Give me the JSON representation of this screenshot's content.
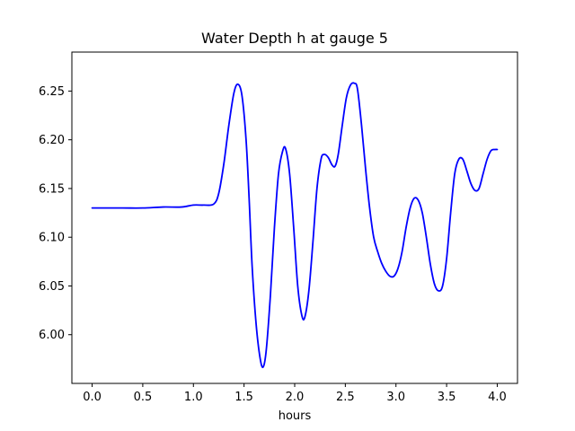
{
  "chart_data": {
    "type": "line",
    "title": "Water Depth h at gauge 5",
    "xlabel": "hours",
    "ylabel": "",
    "xlim": [
      -0.2,
      4.2
    ],
    "ylim": [
      5.95,
      6.29
    ],
    "x_ticks": [
      0.0,
      0.5,
      1.0,
      1.5,
      2.0,
      2.5,
      3.0,
      3.5,
      4.0
    ],
    "x_tick_labels": [
      "0.0",
      "0.5",
      "1.0",
      "1.5",
      "2.0",
      "2.5",
      "3.0",
      "3.5",
      "4.0"
    ],
    "y_ticks": [
      6.0,
      6.05,
      6.1,
      6.15,
      6.2,
      6.25
    ],
    "y_tick_labels": [
      "6.00",
      "6.05",
      "6.10",
      "6.15",
      "6.20",
      "6.25"
    ],
    "grid": false,
    "legend": "none",
    "series": [
      {
        "color": "#0000ff",
        "points": [
          [
            0.0,
            6.13
          ],
          [
            0.3,
            6.13
          ],
          [
            0.5,
            6.13
          ],
          [
            0.7,
            6.131
          ],
          [
            0.88,
            6.131
          ],
          [
            1.0,
            6.133
          ],
          [
            1.1,
            6.133
          ],
          [
            1.2,
            6.134
          ],
          [
            1.25,
            6.145
          ],
          [
            1.3,
            6.175
          ],
          [
            1.35,
            6.215
          ],
          [
            1.4,
            6.248
          ],
          [
            1.44,
            6.257
          ],
          [
            1.48,
            6.245
          ],
          [
            1.52,
            6.2
          ],
          [
            1.55,
            6.14
          ],
          [
            1.58,
            6.07
          ],
          [
            1.62,
            6.01
          ],
          [
            1.66,
            5.975
          ],
          [
            1.69,
            5.967
          ],
          [
            1.72,
            5.985
          ],
          [
            1.76,
            6.04
          ],
          [
            1.8,
            6.11
          ],
          [
            1.84,
            6.165
          ],
          [
            1.88,
            6.188
          ],
          [
            1.91,
            6.191
          ],
          [
            1.95,
            6.165
          ],
          [
            1.99,
            6.11
          ],
          [
            2.03,
            6.05
          ],
          [
            2.07,
            6.02
          ],
          [
            2.1,
            6.018
          ],
          [
            2.14,
            6.045
          ],
          [
            2.18,
            6.095
          ],
          [
            2.22,
            6.15
          ],
          [
            2.26,
            6.18
          ],
          [
            2.29,
            6.185
          ],
          [
            2.33,
            6.182
          ],
          [
            2.37,
            6.174
          ],
          [
            2.4,
            6.173
          ],
          [
            2.43,
            6.185
          ],
          [
            2.47,
            6.215
          ],
          [
            2.51,
            6.243
          ],
          [
            2.55,
            6.256
          ],
          [
            2.59,
            6.258
          ],
          [
            2.62,
            6.252
          ],
          [
            2.66,
            6.215
          ],
          [
            2.7,
            6.17
          ],
          [
            2.74,
            6.13
          ],
          [
            2.78,
            6.1
          ],
          [
            2.82,
            6.085
          ],
          [
            2.86,
            6.073
          ],
          [
            2.9,
            6.065
          ],
          [
            2.94,
            6.06
          ],
          [
            2.98,
            6.06
          ],
          [
            3.02,
            6.068
          ],
          [
            3.06,
            6.085
          ],
          [
            3.1,
            6.11
          ],
          [
            3.14,
            6.13
          ],
          [
            3.18,
            6.14
          ],
          [
            3.22,
            6.138
          ],
          [
            3.26,
            6.125
          ],
          [
            3.3,
            6.1
          ],
          [
            3.34,
            6.072
          ],
          [
            3.38,
            6.052
          ],
          [
            3.42,
            6.045
          ],
          [
            3.46,
            6.05
          ],
          [
            3.5,
            6.078
          ],
          [
            3.54,
            6.125
          ],
          [
            3.58,
            6.165
          ],
          [
            3.62,
            6.18
          ],
          [
            3.66,
            6.18
          ],
          [
            3.7,
            6.168
          ],
          [
            3.74,
            6.155
          ],
          [
            3.78,
            6.148
          ],
          [
            3.82,
            6.15
          ],
          [
            3.86,
            6.165
          ],
          [
            3.9,
            6.18
          ],
          [
            3.94,
            6.189
          ],
          [
            3.98,
            6.19
          ],
          [
            4.0,
            6.19
          ]
        ]
      }
    ]
  }
}
